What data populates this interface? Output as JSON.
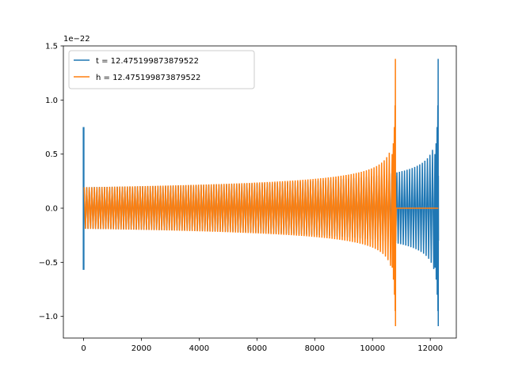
{
  "chart_data": {
    "type": "line",
    "title": "",
    "xlabel": "",
    "ylabel": "",
    "offset_text": "1e−22",
    "xlim": [
      -700,
      12900
    ],
    "ylim": [
      -1.2,
      1.5
    ],
    "x_ticks": [
      0,
      2000,
      4000,
      6000,
      8000,
      10000,
      12000
    ],
    "x_tick_labels": [
      "0",
      "2000",
      "4000",
      "6000",
      "8000",
      "10000",
      "12000"
    ],
    "y_ticks": [
      -1.0,
      -0.5,
      0.0,
      0.5,
      1.0,
      1.5
    ],
    "y_tick_labels": [
      "−1.0",
      "−0.5",
      "0.0",
      "0.5",
      "1.0",
      "1.5"
    ],
    "grid": false,
    "legend_position": "upper-left",
    "series": [
      {
        "name": "t = 12.475199873879522",
        "color": "#1f77b4",
        "x_start": 0,
        "x_end": 12280,
        "initial_spike": {
          "x": 0,
          "max": 0.75,
          "min": -0.57
        },
        "early_amplitude": 0.19,
        "peak_x": 12280,
        "peak_max": 1.38,
        "peak_min": -1.09
      },
      {
        "name": "h = 12.475199873879522",
        "color": "#ff7f0e",
        "x_start": 0,
        "x_end": 12280,
        "early_amplitude": 0.19,
        "peak_x": 10800,
        "peak_max": 1.38,
        "peak_min": -1.09,
        "post_merger_value": 0.0
      }
    ]
  }
}
